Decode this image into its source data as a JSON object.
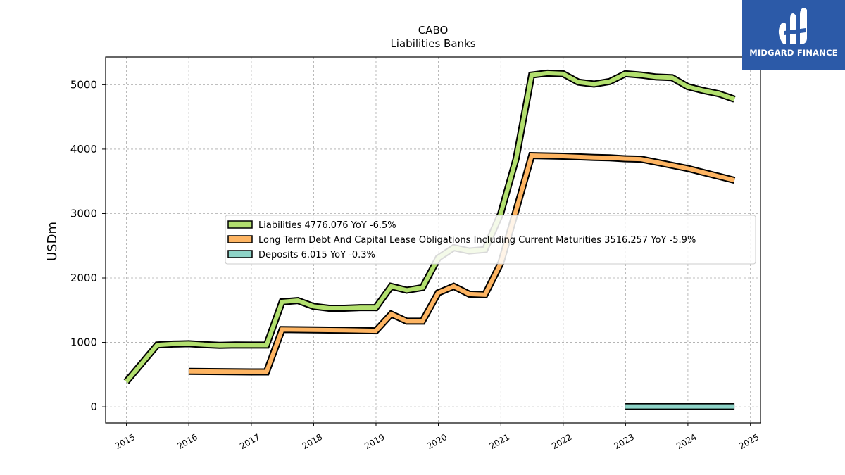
{
  "chart_data": {
    "type": "line",
    "title": "CABO",
    "subtitle": "Liabilities Banks",
    "ylabel": "USDm",
    "xlabel": "",
    "x_ticks": [
      "2015",
      "2016",
      "2017",
      "2018",
      "2019",
      "2020",
      "2021",
      "2022",
      "2023",
      "2024",
      "2025"
    ],
    "y_ticks": [
      "0",
      "1000",
      "2000",
      "3000",
      "4000",
      "5000"
    ],
    "xlim": [
      "2014-09-01",
      "2025-03-01"
    ],
    "ylim": [
      -250,
      5430
    ],
    "grid": true,
    "legend_position": "center",
    "series": [
      {
        "name": "Liabilities",
        "legend_label": "Liabilities  4776.076 YoY -6.5%",
        "color": "#b2df6e",
        "points": [
          [
            "2014-12-31",
            390
          ],
          [
            "2015-06-30",
            960
          ],
          [
            "2015-09-30",
            975
          ],
          [
            "2015-12-31",
            980
          ],
          [
            "2016-03-31",
            965
          ],
          [
            "2016-06-30",
            955
          ],
          [
            "2016-09-30",
            960
          ],
          [
            "2016-12-31",
            958
          ],
          [
            "2017-03-31",
            958
          ],
          [
            "2017-06-30",
            1630
          ],
          [
            "2017-09-30",
            1650
          ],
          [
            "2017-12-31",
            1560
          ],
          [
            "2018-03-31",
            1530
          ],
          [
            "2018-06-30",
            1530
          ],
          [
            "2018-09-30",
            1540
          ],
          [
            "2018-12-31",
            1540
          ],
          [
            "2019-03-31",
            1870
          ],
          [
            "2019-06-30",
            1810
          ],
          [
            "2019-09-30",
            1850
          ],
          [
            "2019-12-31",
            2310
          ],
          [
            "2020-03-31",
            2470
          ],
          [
            "2020-06-30",
            2420
          ],
          [
            "2020-09-30",
            2440
          ],
          [
            "2020-12-31",
            3000
          ],
          [
            "2021-03-31",
            3850
          ],
          [
            "2021-06-30",
            5150
          ],
          [
            "2021-09-30",
            5180
          ],
          [
            "2021-12-31",
            5170
          ],
          [
            "2022-03-31",
            5040
          ],
          [
            "2022-06-30",
            5010
          ],
          [
            "2022-09-30",
            5050
          ],
          [
            "2022-12-31",
            5170
          ],
          [
            "2023-03-31",
            5150
          ],
          [
            "2023-06-30",
            5120
          ],
          [
            "2023-09-30",
            5110
          ],
          [
            "2023-12-31",
            4970
          ],
          [
            "2024-03-31",
            4910
          ],
          [
            "2024-06-30",
            4860
          ],
          [
            "2024-09-30",
            4776.076
          ]
        ]
      },
      {
        "name": "Long Term Debt And Capital Lease Obligations Including Current Maturities",
        "legend_label": "Long Term Debt And Capital Lease Obligations Including Current Maturities  3516.257 YoY -5.9%",
        "color": "#fdb462",
        "points": [
          [
            "2015-12-31",
            550
          ],
          [
            "2016-12-31",
            542
          ],
          [
            "2017-03-31",
            542
          ],
          [
            "2017-06-30",
            1200
          ],
          [
            "2017-12-31",
            1195
          ],
          [
            "2018-06-30",
            1190
          ],
          [
            "2018-12-31",
            1180
          ],
          [
            "2019-03-31",
            1440
          ],
          [
            "2019-06-30",
            1330
          ],
          [
            "2019-09-30",
            1330
          ],
          [
            "2019-12-31",
            1770
          ],
          [
            "2020-03-31",
            1870
          ],
          [
            "2020-06-30",
            1750
          ],
          [
            "2020-09-30",
            1740
          ],
          [
            "2020-12-31",
            2230
          ],
          [
            "2021-03-31",
            3050
          ],
          [
            "2021-06-30",
            3900
          ],
          [
            "2021-12-31",
            3890
          ],
          [
            "2022-06-30",
            3870
          ],
          [
            "2022-09-30",
            3865
          ],
          [
            "2022-12-31",
            3850
          ],
          [
            "2023-03-31",
            3845
          ],
          [
            "2023-12-31",
            3700
          ],
          [
            "2024-09-30",
            3516.257
          ]
        ]
      },
      {
        "name": "Deposits",
        "legend_label": "Deposits  6.015 YoY -0.3%",
        "color": "#8dd3c7",
        "points": [
          [
            "2022-12-31",
            6.03
          ],
          [
            "2024-09-30",
            6.015
          ]
        ]
      }
    ]
  },
  "logo": {
    "text": "MIDGARD FINANCE",
    "background": "#2c5aa8"
  }
}
